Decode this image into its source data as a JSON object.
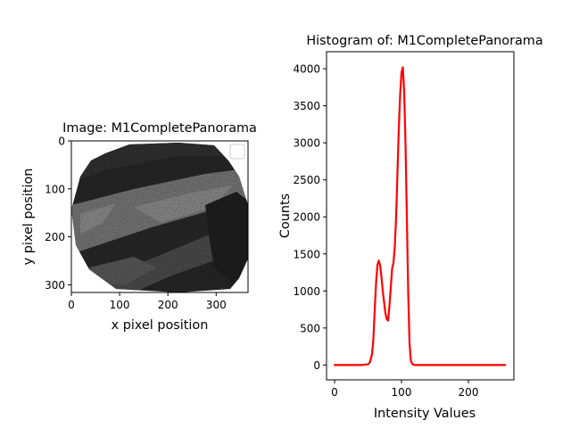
{
  "chart_data": [
    {
      "type": "image",
      "title": "Image: M1CompletePanorama",
      "xlabel": "x pixel position",
      "ylabel": "y pixel position",
      "xlim": [
        0,
        366
      ],
      "ylim": [
        316,
        0
      ],
      "xticks": [
        0,
        100,
        200,
        300
      ],
      "yticks": [
        0,
        100,
        200,
        300
      ],
      "legend": {
        "placement": "top-right",
        "entries": []
      },
      "colormap": "gray"
    },
    {
      "type": "line",
      "title": "Histogram of: M1CompletePanorama",
      "xlabel": "Intensity Values",
      "ylabel": "Counts",
      "xlim": [
        -12,
        268
      ],
      "ylim": [
        -200,
        4230
      ],
      "xticks": [
        0,
        100,
        200
      ],
      "yticks": [
        0,
        500,
        1000,
        1500,
        2000,
        2500,
        3000,
        3500,
        4000
      ],
      "grid": false,
      "series": [
        {
          "color": "#ff0000",
          "x": [
            0,
            40,
            50,
            53,
            56,
            58,
            60,
            62,
            64,
            66,
            68,
            70,
            72,
            74,
            76,
            78,
            80,
            82,
            84,
            86,
            88,
            90,
            92,
            94,
            96,
            98,
            100,
            102,
            104,
            106,
            108,
            110,
            112,
            114,
            116,
            118,
            120,
            125,
            140,
            200,
            255
          ],
          "y": [
            0,
            0,
            10,
            40,
            150,
            350,
            750,
            1100,
            1350,
            1410,
            1350,
            1200,
            1000,
            850,
            700,
            620,
            600,
            800,
            1050,
            1300,
            1380,
            1600,
            2000,
            2600,
            3200,
            3650,
            3950,
            4020,
            3700,
            3000,
            2000,
            1000,
            300,
            60,
            15,
            5,
            0,
            0,
            0,
            0,
            0
          ]
        }
      ]
    }
  ]
}
